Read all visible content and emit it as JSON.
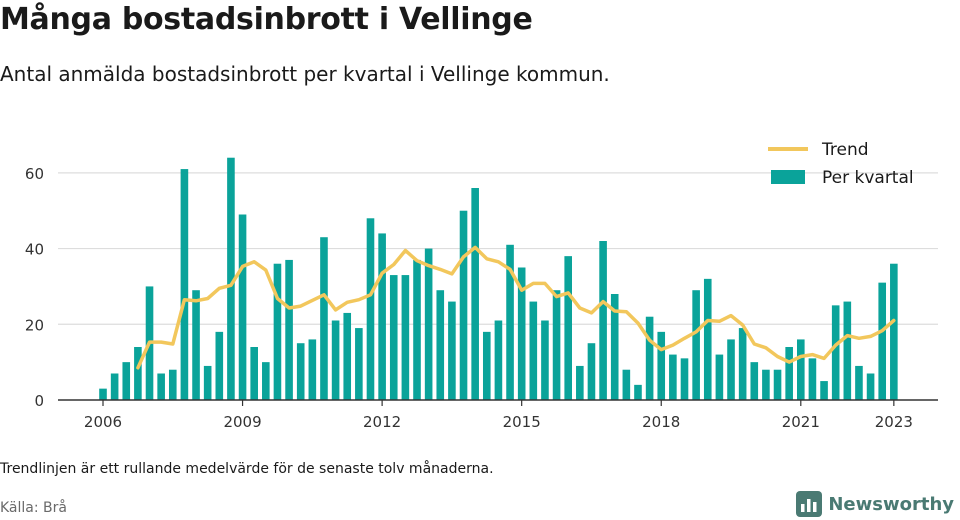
{
  "title": "Många bostadsinbrott i Vellinge",
  "subtitle": "Antal anmälda bostadsinbrott per kvartal i Vellinge kommun.",
  "footnote": "Trendlinjen är ett rullande medelvärde för de senaste tolv månaderna.",
  "source": "Källa: Brå",
  "brand": {
    "name": "Newsworthy",
    "icon": "newsworthy-logo-icon",
    "color": "#4a7a73"
  },
  "colors": {
    "bars": "#0aa39a",
    "trend": "#f2c75c",
    "grid": "#dddddd",
    "axis": "#333333",
    "tick": "#333333"
  },
  "chart_data": {
    "type": "bar",
    "title": "Många bostadsinbrott i Vellinge",
    "xlabel": "",
    "ylabel": "",
    "ylim": [
      0,
      70
    ],
    "yticks": [
      0,
      20,
      40,
      60
    ],
    "xticks": [
      "2006",
      "2009",
      "2012",
      "2015",
      "2018",
      "2021",
      "2023"
    ],
    "grid": true,
    "legend_position": "top-right",
    "quarters": [
      "2006 Q1",
      "2006 Q2",
      "2006 Q3",
      "2006 Q4",
      "2007 Q1",
      "2007 Q2",
      "2007 Q3",
      "2007 Q4",
      "2008 Q1",
      "2008 Q2",
      "2008 Q3",
      "2008 Q4",
      "2009 Q1",
      "2009 Q2",
      "2009 Q3",
      "2009 Q4",
      "2010 Q1",
      "2010 Q2",
      "2010 Q3",
      "2010 Q4",
      "2011 Q1",
      "2011 Q2",
      "2011 Q3",
      "2011 Q4",
      "2012 Q1",
      "2012 Q2",
      "2012 Q3",
      "2012 Q4",
      "2013 Q1",
      "2013 Q2",
      "2013 Q3",
      "2013 Q4",
      "2014 Q1",
      "2014 Q2",
      "2014 Q3",
      "2014 Q4",
      "2015 Q1",
      "2015 Q2",
      "2015 Q3",
      "2015 Q4",
      "2016 Q1",
      "2016 Q2",
      "2016 Q3",
      "2016 Q4",
      "2017 Q1",
      "2017 Q2",
      "2017 Q3",
      "2017 Q4",
      "2018 Q1",
      "2018 Q2",
      "2018 Q3",
      "2018 Q4",
      "2019 Q1",
      "2019 Q2",
      "2019 Q3",
      "2019 Q4",
      "2020 Q1",
      "2020 Q2",
      "2020 Q3",
      "2020 Q4",
      "2021 Q1",
      "2021 Q2",
      "2021 Q3",
      "2021 Q4",
      "2022 Q1",
      "2022 Q2",
      "2022 Q3",
      "2022 Q4",
      "2023 Q1"
    ],
    "series": [
      {
        "name": "Per kvartal",
        "type": "bar",
        "values": [
          3,
          7,
          10,
          14,
          30,
          7,
          8,
          61,
          29,
          9,
          18,
          64,
          49,
          14,
          10,
          36,
          37,
          15,
          16,
          43,
          21,
          23,
          19,
          48,
          44,
          33,
          33,
          37,
          40,
          29,
          26,
          50,
          56,
          18,
          21,
          41,
          35,
          26,
          21,
          29,
          38,
          9,
          15,
          42,
          28,
          8,
          4,
          22,
          18,
          12,
          11,
          29,
          32,
          12,
          16,
          19,
          10,
          8,
          8,
          14,
          16,
          11,
          5,
          25,
          26,
          9,
          7,
          31,
          36
        ]
      },
      {
        "name": "Trend",
        "type": "line",
        "values": [
          null,
          null,
          null,
          8.5,
          15.3,
          15.3,
          14.8,
          26.5,
          26.2,
          26.8,
          29.5,
          30.3,
          35.3,
          36.5,
          34.3,
          26.8,
          24.3,
          24.8,
          26.3,
          27.8,
          23.8,
          25.8,
          26.5,
          27.8,
          33.5,
          35.8,
          39.5,
          36.8,
          35.5,
          34.5,
          33.3,
          37.8,
          40.3,
          37.3,
          36.5,
          34.5,
          29.0,
          30.8,
          30.8,
          27.3,
          28.3,
          24.3,
          23.0,
          26.0,
          23.5,
          23.3,
          20.3,
          15.8,
          13.3,
          14.5,
          16.3,
          18.0,
          21.0,
          20.8,
          22.3,
          19.8,
          14.8,
          13.8,
          11.5,
          10.0,
          11.5,
          12.0,
          11.0,
          14.5,
          17.0,
          16.3,
          16.8,
          18.3,
          21.0
        ]
      }
    ]
  }
}
